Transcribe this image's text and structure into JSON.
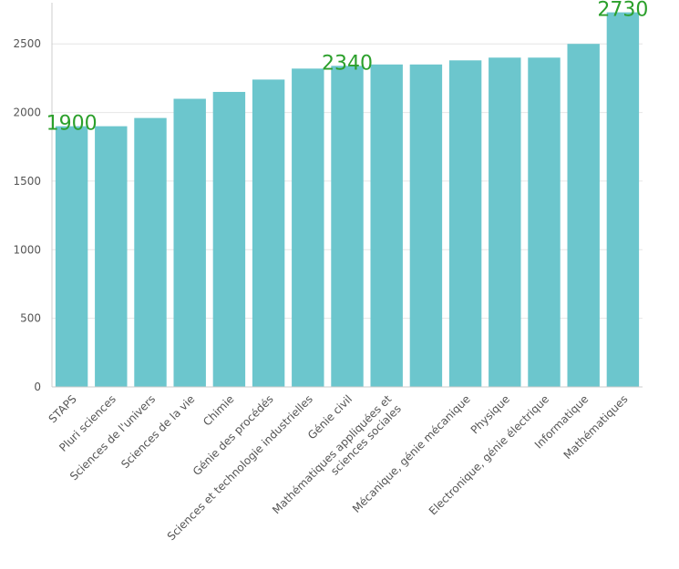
{
  "chart_data": {
    "type": "bar",
    "categories": [
      "STAPS",
      "Pluri sciences",
      "Sciences de l'univers",
      "Sciences de la vie",
      "Chimie",
      "Génie des procédés",
      "Sciences et technologie industrielles",
      "Génie civil",
      "Mathématiques appliquées et sciences sociales",
      "",
      "Mécanique, génie mécanique",
      "Physique",
      "Electronique, génie électrique",
      "Informatique",
      "Mathématiques"
    ],
    "category_label_lines": [
      [
        "STAPS"
      ],
      [
        "Pluri sciences"
      ],
      [
        "Sciences de l'univers"
      ],
      [
        "Sciences de la vie"
      ],
      [
        "Chimie"
      ],
      [
        "Génie des procédés"
      ],
      [
        "Sciences et technologie industrielles"
      ],
      [
        "Génie civil"
      ],
      [
        "Mathématiques appliquées et",
        "sciences sociales"
      ],
      [],
      [
        "Mécanique, génie mécanique"
      ],
      [
        "Physique"
      ],
      [
        "Electronique, génie électrique"
      ],
      [
        "Informatique"
      ],
      [
        "Mathématiques"
      ]
    ],
    "values": [
      1900,
      1900,
      1960,
      2100,
      2150,
      2240,
      2320,
      2340,
      2350,
      2350,
      2380,
      2400,
      2400,
      2500,
      2730
    ],
    "data_labels": [
      {
        "index": 0,
        "text": "1900"
      },
      {
        "index": 7,
        "text": "2340"
      },
      {
        "index": 14,
        "text": "2730"
      }
    ],
    "yticks": [
      0,
      500,
      1000,
      1500,
      2000,
      2500
    ],
    "ylim": [
      0,
      2800
    ],
    "grid": true,
    "colors": {
      "bar": "#6cc6cd",
      "data_label": "#2ca02c",
      "grid": "#e6e6e6",
      "axis": "#cccccc",
      "tick_text": "#555555"
    }
  }
}
